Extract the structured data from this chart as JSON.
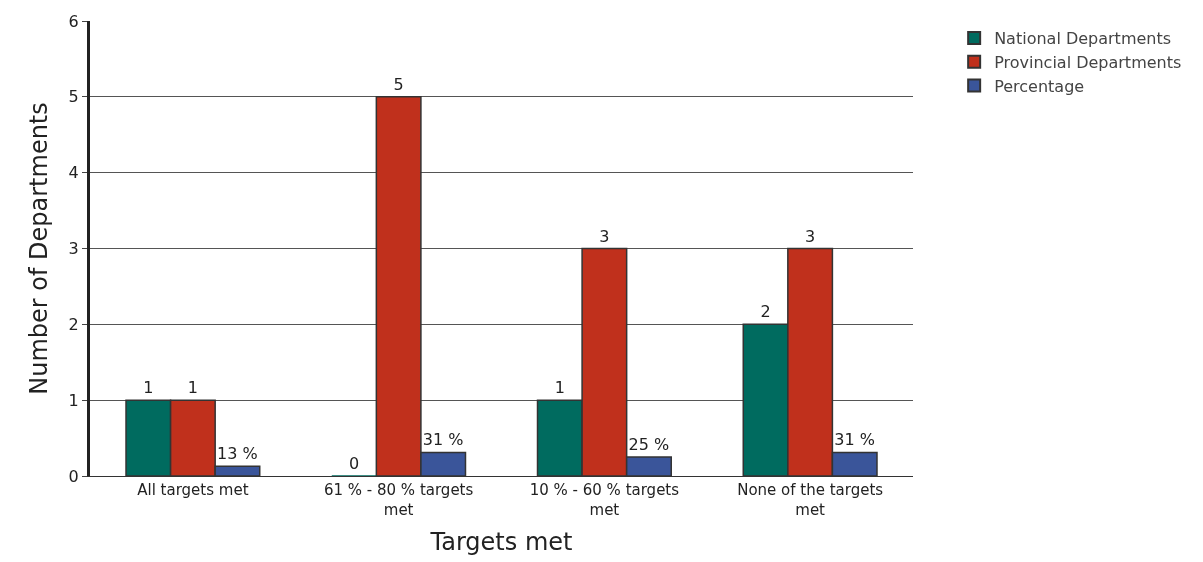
{
  "chart_data": {
    "type": "bar",
    "xlabel": "Targets met",
    "ylabel": "Number of Departments",
    "categories": [
      "All targets met",
      "61 % - 80 % targets met",
      "10 % - 60 % targets met",
      "None of the targets met"
    ],
    "series": [
      {
        "name": "National Departments",
        "color": "#006b5f",
        "values": [
          1,
          0,
          1,
          2
        ],
        "value_labels": [
          "1",
          "0",
          "1",
          "2"
        ]
      },
      {
        "name": "Provincial Departments",
        "color": "#c0301c",
        "values": [
          1,
          5,
          3,
          3
        ],
        "value_labels": [
          "1",
          "5",
          "3",
          "3"
        ]
      },
      {
        "name": "Percentage",
        "color": "#3a559a",
        "values": [
          0.13,
          0.31,
          0.25,
          0.31
        ],
        "value_labels": [
          "13 %",
          "31 %",
          "25 %",
          "31 %"
        ]
      }
    ],
    "ylim": [
      0,
      6
    ],
    "yticks": [
      0,
      1,
      2,
      3,
      4,
      5,
      6
    ],
    "grid": "y",
    "legend": "top right"
  }
}
